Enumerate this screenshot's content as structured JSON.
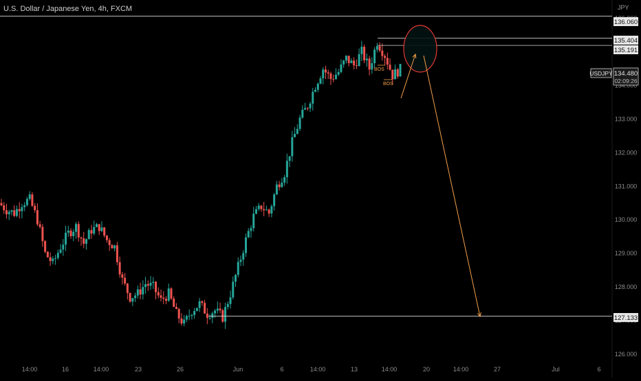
{
  "header": {
    "title": "U.S. Dollar / Japanese Yen, 4h, FXCM"
  },
  "currency": "JPY",
  "price_labels": {
    "symbol": "USDJPY",
    "last": "134.480",
    "countdown": "02:09:26",
    "levels": [
      "136.060",
      "135.404",
      "135.191",
      "127.133"
    ]
  },
  "candle_labels": [
    "BOS",
    "BOS"
  ],
  "colors": {
    "background": "#000000",
    "up": "#26a69a",
    "down": "#ef5350",
    "annotation": "#f5a04a",
    "circle": "#e53935",
    "level_line": "#d8d8d8"
  },
  "chart_data": {
    "type": "candlestick",
    "title": "U.S. Dollar / Japanese Yen, 4h, FXCM",
    "ylim": [
      126.0,
      136.7
    ],
    "y_ticks": [
      126,
      127,
      128,
      129,
      130,
      131,
      132,
      133,
      134,
      135,
      136
    ],
    "x_ticks": [
      "14:00",
      "16",
      "14:00",
      "23",
      "26",
      "Jun",
      "6",
      "14:00",
      "13",
      "14:00",
      "20",
      "14:00",
      "27",
      "Jul",
      "6"
    ],
    "levels": [
      136.06,
      135.404,
      135.191,
      127.133
    ],
    "last_price": 134.48,
    "approx_close_path": [
      130.5,
      130.3,
      130.2,
      130.5,
      130.6,
      130.0,
      129.0,
      128.7,
      129.2,
      129.6,
      129.8,
      129.3,
      129.7,
      129.8,
      129.4,
      129.2,
      128.2,
      127.7,
      127.8,
      128.1,
      128.0,
      127.6,
      127.8,
      127.2,
      126.9,
      127.3,
      127.5,
      127.2,
      127.3,
      127.1,
      127.8,
      128.6,
      129.4,
      130.1,
      130.4,
      130.2,
      131.0,
      131.4,
      132.3,
      133.0,
      133.4,
      134.0,
      134.5,
      134.2,
      134.4,
      134.8,
      134.6,
      135.0,
      134.5,
      135.3,
      134.9,
      134.3,
      134.48
    ],
    "annotations": [
      {
        "type": "ellipse",
        "center": {
          "date": "around 20 Jun",
          "price": 135.3
        }
      },
      {
        "type": "arrow",
        "from": {
          "date": "around 16 Jun",
          "price": 133.8
        },
        "to": {
          "date": "around 20 Jun",
          "price": 135.35
        }
      },
      {
        "type": "arrow",
        "from": {
          "date": "around 20 Jun",
          "price": 135.1
        },
        "to": {
          "date": "around 24 Jun",
          "price": 127.1
        }
      }
    ]
  }
}
